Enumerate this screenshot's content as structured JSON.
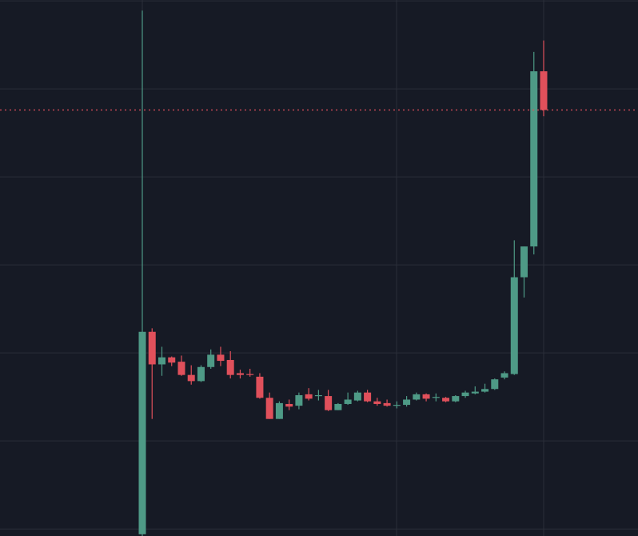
{
  "chart_data": {
    "type": "candlestick",
    "categories": [
      null,
      null,
      null,
      null,
      null,
      null,
      null,
      null,
      null,
      null,
      null,
      null,
      null,
      null,
      null,
      null,
      null,
      null,
      null,
      null,
      null,
      null,
      null,
      null,
      null,
      null,
      null,
      null,
      null,
      null,
      null,
      null,
      null,
      null,
      null,
      null,
      null,
      null,
      null,
      null,
      null,
      null
    ],
    "open": [
      -0.06,
      2.24,
      1.87,
      1.95,
      1.9,
      1.75,
      1.68,
      1.84,
      1.98,
      1.92,
      1.77,
      1.76,
      1.73,
      1.49,
      1.25,
      1.42,
      1.4,
      1.53,
      1.51,
      1.51,
      1.35,
      1.42,
      1.46,
      1.55,
      1.45,
      1.43,
      1.4,
      1.41,
      1.47,
      1.53,
      1.49,
      1.49,
      1.45,
      1.51,
      1.54,
      1.56,
      1.59,
      1.72,
      1.76,
      2.86,
      3.21,
      5.2
    ],
    "high": [
      5.89,
      2.28,
      2.07,
      1.96,
      1.97,
      1.86,
      1.86,
      2.04,
      2.07,
      2.02,
      1.81,
      1.82,
      1.77,
      1.55,
      1.45,
      1.47,
      1.55,
      1.6,
      1.58,
      1.58,
      1.43,
      1.55,
      1.57,
      1.58,
      1.49,
      1.47,
      1.45,
      1.51,
      1.55,
      1.54,
      1.54,
      1.5,
      1.52,
      1.57,
      1.62,
      1.65,
      1.71,
      1.79,
      3.28,
      3.21,
      5.42,
      5.55
    ],
    "low": [
      -0.08,
      1.25,
      1.74,
      1.85,
      1.74,
      1.64,
      1.67,
      1.82,
      1.85,
      1.71,
      1.71,
      1.73,
      1.48,
      1.25,
      1.25,
      1.35,
      1.36,
      1.46,
      1.46,
      1.34,
      1.35,
      1.41,
      1.45,
      1.44,
      1.4,
      1.39,
      1.37,
      1.39,
      1.46,
      1.45,
      1.45,
      1.44,
      1.44,
      1.49,
      1.53,
      1.55,
      1.58,
      1.7,
      1.75,
      2.63,
      3.12,
      4.69
    ],
    "close": [
      2.24,
      1.87,
      1.95,
      1.89,
      1.75,
      1.68,
      1.84,
      1.98,
      1.91,
      1.75,
      1.75,
      1.75,
      1.49,
      1.25,
      1.43,
      1.39,
      1.52,
      1.48,
      1.52,
      1.35,
      1.42,
      1.47,
      1.55,
      1.45,
      1.42,
      1.4,
      1.41,
      1.47,
      1.53,
      1.48,
      1.5,
      1.45,
      1.51,
      1.55,
      1.56,
      1.59,
      1.7,
      1.77,
      2.86,
      3.21,
      5.2,
      4.76
    ],
    "up_color": "#4e9a86",
    "down_color": "#e0505b",
    "ylim": [
      -0.08,
      6.01
    ],
    "yticks": [
      0,
      1,
      2,
      3,
      4,
      5,
      6
    ],
    "grid": true,
    "price_line": true
  }
}
